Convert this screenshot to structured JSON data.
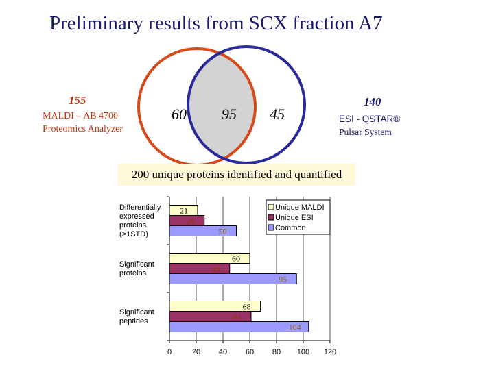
{
  "title": "Preliminary results from SCX fraction A7",
  "venn": {
    "maldi_total": "155",
    "maldi_label_line1": "MALDI – AB 4700",
    "maldi_label_line2": "Proteomics Analyzer",
    "esi_total": "140",
    "esi_label_line1": "ESI - QSTAR®",
    "esi_label_line2": "Pulsar System",
    "unique_maldi": "60",
    "common": "95",
    "unique_esi": "45",
    "colors": {
      "maldi": "#d84a1a",
      "esi": "#2a2a9a",
      "overlap": "#d3d3d3"
    }
  },
  "banner": "200 unique proteins identified and quantified",
  "chart_data": {
    "type": "bar",
    "orientation": "horizontal",
    "categories": [
      [
        "Differentially",
        "expressed",
        "proteins",
        "(>1STD)"
      ],
      [
        "Significant",
        "proteins"
      ],
      [
        "Significant",
        "peptides"
      ]
    ],
    "series": [
      {
        "name": "Unique MALDI",
        "values": [
          21,
          60,
          68
        ],
        "color": "#ffffcc"
      },
      {
        "name": "Unique ESI",
        "values": [
          26,
          45,
          61
        ],
        "color": "#993366"
      },
      {
        "name": "Common",
        "values": [
          50,
          95,
          104
        ],
        "color": "#9999ff"
      }
    ],
    "xlim": [
      0,
      120
    ],
    "xticks": [
      "0",
      "20",
      "40",
      "60",
      "80",
      "100",
      "120"
    ],
    "grid": "vertical",
    "legend_position": "top-right",
    "label_colors": [
      "#000000",
      "#993300",
      "#996600"
    ]
  }
}
